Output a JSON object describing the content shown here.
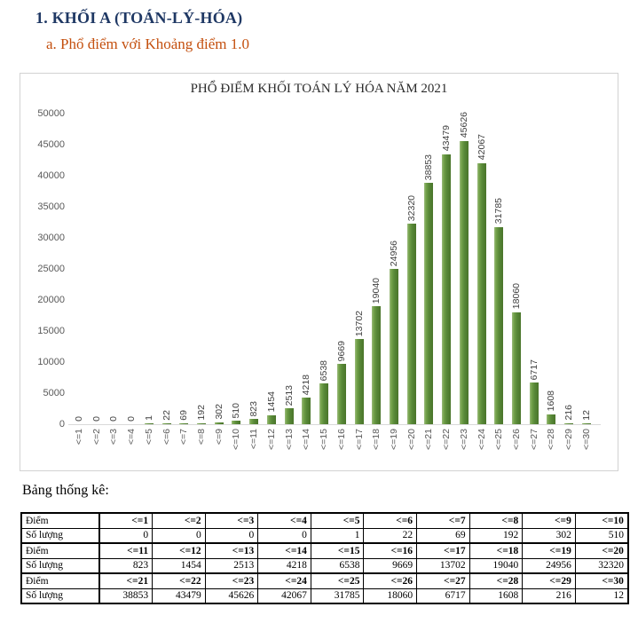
{
  "page": {
    "heading1": "1. KHỐI A (TOÁN-LÝ-HÓA)",
    "heading2": "a. Phổ điểm với Khoảng điểm 1.0"
  },
  "colors": {
    "heading1": "#1f3864",
    "heading2": "#c4500f",
    "bar_main": "#568434",
    "bar_highlight": "#9dbd7e",
    "axis_text": "#595959",
    "value_label_text": "#3f3f3f",
    "chart_border": "#d2d2d2",
    "table_border": "#000000"
  },
  "chart_data": {
    "type": "bar",
    "title": "PHỔ ĐIỂM KHỐI TOÁN LÝ HÓA NĂM 2021",
    "categories": [
      "<=1",
      "<=2",
      "<=3",
      "<=4",
      "<=5",
      "<=6",
      "<=7",
      "<=8",
      "<=9",
      "<=10",
      "<=11",
      "<=12",
      "<=13",
      "<=14",
      "<=15",
      "<=16",
      "<=17",
      "<=18",
      "<=19",
      "<=20",
      "<=21",
      "<=22",
      "<=23",
      "<=24",
      "<=25",
      "<=26",
      "<=27",
      "<=28",
      "<=29",
      "<=30"
    ],
    "values": [
      0,
      0,
      0,
      0,
      1,
      22,
      69,
      192,
      302,
      510,
      823,
      1454,
      2513,
      4218,
      6538,
      9669,
      13702,
      19040,
      24956,
      32320,
      38853,
      43479,
      45626,
      42067,
      31785,
      18060,
      6717,
      1608,
      216,
      12
    ],
    "xlabel": "",
    "ylabel": "",
    "ylim": [
      0,
      50000
    ],
    "ytick_step": 5000,
    "grid": false,
    "legend": "none",
    "bar_color": "green",
    "value_labels": "rotated-90-above-bars",
    "category_labels": "rotated-90"
  },
  "table": {
    "caption": "Bảng thống kê:",
    "row_label_score": "Điểm",
    "row_label_count": "Số lượng",
    "groups": [
      {
        "scores": [
          "<=1",
          "<=2",
          "<=3",
          "<=4",
          "<=5",
          "<=6",
          "<=7",
          "<=8",
          "<=9",
          "<=10"
        ],
        "counts": [
          "0",
          "0",
          "0",
          "0",
          "1",
          "22",
          "69",
          "192",
          "302",
          "510"
        ]
      },
      {
        "scores": [
          "<=11",
          "<=12",
          "<=13",
          "<=14",
          "<=15",
          "<=16",
          "<=17",
          "<=18",
          "<=19",
          "<=20"
        ],
        "counts": [
          "823",
          "1454",
          "2513",
          "4218",
          "6538",
          "9669",
          "13702",
          "19040",
          "24956",
          "32320"
        ]
      },
      {
        "scores": [
          "<=21",
          "<=22",
          "<=23",
          "<=24",
          "<=25",
          "<=26",
          "<=27",
          "<=28",
          "<=29",
          "<=30"
        ],
        "counts": [
          "38853",
          "43479",
          "45626",
          "42067",
          "31785",
          "18060",
          "6717",
          "1608",
          "216",
          "12"
        ]
      }
    ]
  }
}
